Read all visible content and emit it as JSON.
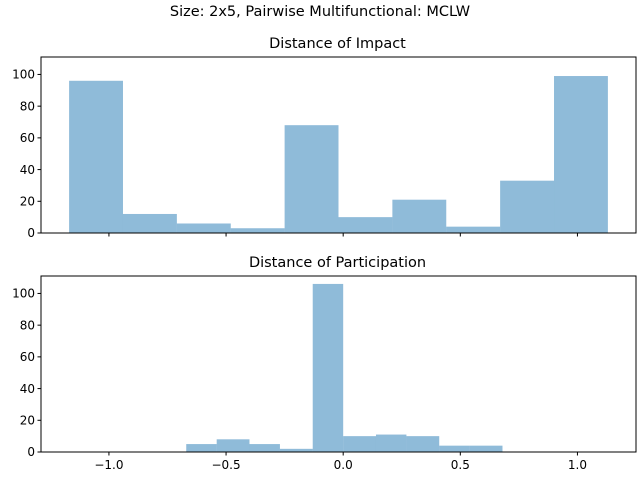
{
  "figure": {
    "suptitle": "Size: 2x5, Pairwise Multifunctional: MCLW"
  },
  "chart_data": [
    {
      "type": "bar",
      "title": "Distance of Impact",
      "xlabel": "",
      "ylabel": "",
      "xlim": [
        -1.29,
        1.25
      ],
      "ylim": [
        0,
        111
      ],
      "xticks": [
        -1.0,
        -0.5,
        0.0,
        0.5,
        1.0
      ],
      "yticks": [
        0,
        20,
        40,
        60,
        80,
        100
      ],
      "show_xtick_labels": false,
      "grid": false,
      "bins": [
        {
          "x0": -1.17,
          "x1": -0.94,
          "value": 96
        },
        {
          "x0": -0.94,
          "x1": -0.71,
          "value": 12
        },
        {
          "x0": -0.71,
          "x1": -0.48,
          "value": 6
        },
        {
          "x0": -0.48,
          "x1": -0.25,
          "value": 3
        },
        {
          "x0": -0.25,
          "x1": -0.02,
          "value": 68
        },
        {
          "x0": -0.02,
          "x1": 0.21,
          "value": 10
        },
        {
          "x0": 0.21,
          "x1": 0.44,
          "value": 21
        },
        {
          "x0": 0.44,
          "x1": 0.67,
          "value": 4
        },
        {
          "x0": 0.67,
          "x1": 0.9,
          "value": 33
        },
        {
          "x0": 0.9,
          "x1": 1.13,
          "value": 99
        }
      ]
    },
    {
      "type": "bar",
      "title": "Distance of Participation",
      "xlabel": "",
      "ylabel": "",
      "xlim": [
        -1.29,
        1.25
      ],
      "ylim": [
        0,
        111
      ],
      "xticks": [
        -1.0,
        -0.5,
        0.0,
        0.5,
        1.0
      ],
      "xtick_labels": [
        "−1.0",
        "−0.5",
        "0.0",
        "0.5",
        "1.0"
      ],
      "yticks": [
        0,
        20,
        40,
        60,
        80,
        100
      ],
      "show_xtick_labels": true,
      "grid": false,
      "bins": [
        {
          "x0": -0.67,
          "x1": -0.54,
          "value": 5
        },
        {
          "x0": -0.54,
          "x1": -0.4,
          "value": 8
        },
        {
          "x0": -0.4,
          "x1": -0.27,
          "value": 5
        },
        {
          "x0": -0.27,
          "x1": -0.13,
          "value": 2
        },
        {
          "x0": -0.13,
          "x1": 0.0,
          "value": 106
        },
        {
          "x0": 0.0,
          "x1": 0.14,
          "value": 10
        },
        {
          "x0": 0.14,
          "x1": 0.27,
          "value": 11
        },
        {
          "x0": 0.27,
          "x1": 0.41,
          "value": 10
        },
        {
          "x0": 0.41,
          "x1": 0.54,
          "value": 4
        },
        {
          "x0": 0.54,
          "x1": 0.68,
          "value": 4
        }
      ]
    }
  ],
  "colors": {
    "bar": "#1f77b4"
  }
}
